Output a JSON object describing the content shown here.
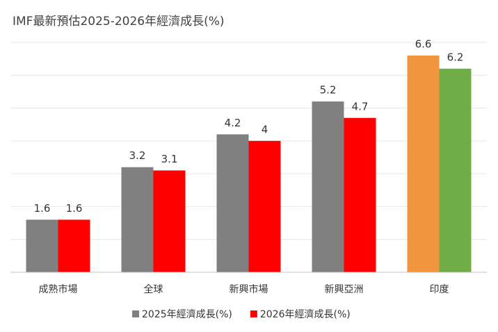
{
  "chart_data": {
    "type": "bar",
    "title": "IMF最新預估2025-2026年經濟成長(%)",
    "categories": [
      "成熟市場",
      "全球",
      "新興市場",
      "新興亞洲",
      "印度"
    ],
    "series": [
      {
        "name": "2025年經濟成長(%)",
        "color": "#808080",
        "colors": [
          "#808080",
          "#808080",
          "#808080",
          "#808080",
          "#f0963f"
        ],
        "values": [
          1.6,
          3.2,
          4.2,
          5.2,
          6.6
        ]
      },
      {
        "name": "2026年經濟成長(%)",
        "color": "#ff0000",
        "colors": [
          "#ff0000",
          "#ff0000",
          "#ff0000",
          "#ff0000",
          "#70ad47"
        ],
        "values": [
          1.6,
          3.1,
          4,
          4.7,
          6.2
        ]
      }
    ],
    "ylim": [
      0,
      7
    ],
    "yticks": [
      0,
      1,
      2,
      3,
      4,
      5,
      6,
      7
    ],
    "grid": true,
    "show_tick_labels": false,
    "legend": "bottom"
  }
}
